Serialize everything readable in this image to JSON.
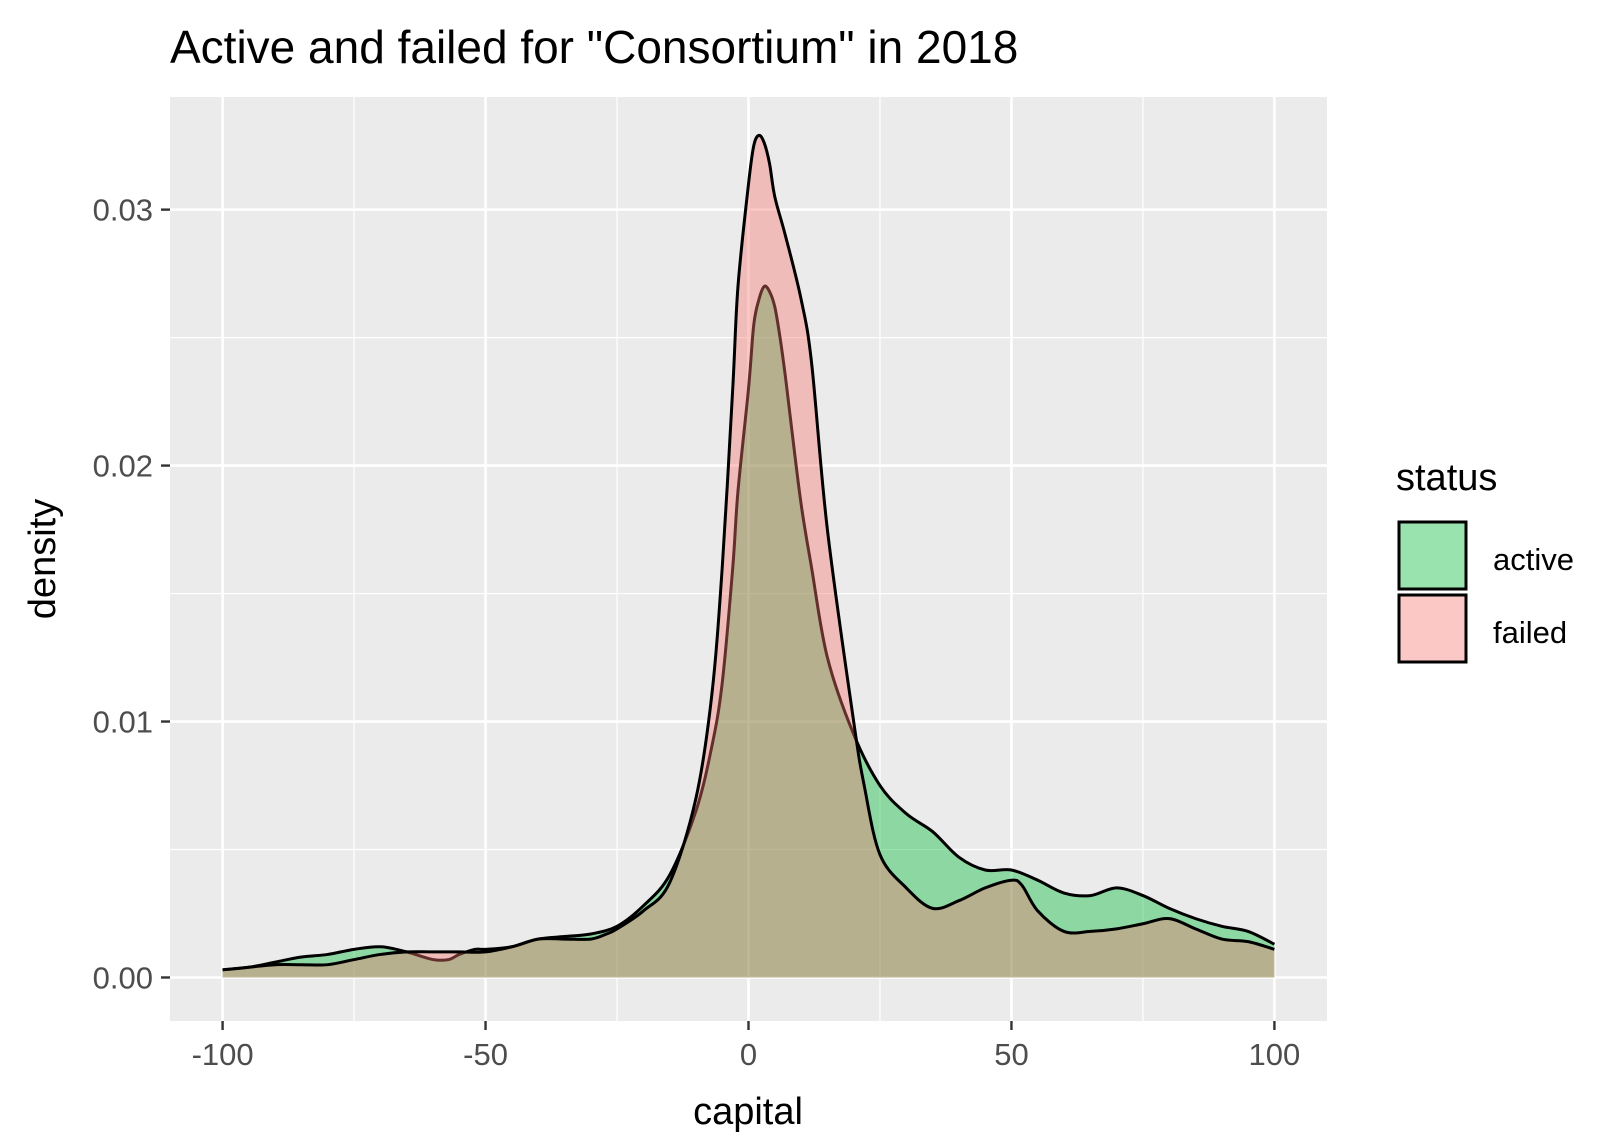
{
  "chart_data": {
    "type": "area",
    "title": "Active and failed for \"Consortium\" in 2018",
    "xlabel": "capital",
    "ylabel": "density",
    "xlim": [
      -110,
      110
    ],
    "ylim": [
      -0.0017,
      0.0344
    ],
    "x_ticks": [
      -100,
      -50,
      0,
      50,
      100
    ],
    "x_tick_labels": [
      "-100",
      "-50",
      "0",
      "50",
      "100"
    ],
    "y_ticks": [
      0.0,
      0.01,
      0.02,
      0.03
    ],
    "y_tick_labels": [
      "0.00",
      "0.01",
      "0.02",
      "0.03"
    ],
    "grid": true,
    "legend": {
      "title": "status",
      "position": "right",
      "entries": [
        {
          "label": "active",
          "color": "#00ba38"
        },
        {
          "label": "failed",
          "color": "#f8766d"
        }
      ]
    },
    "fill_opacity": 0.4,
    "series": [
      {
        "name": "active",
        "color": "#00ba38",
        "x": [
          -100,
          -95,
          -90,
          -85,
          -80,
          -75,
          -70,
          -65,
          -60,
          -57,
          -55,
          -52,
          -50,
          -45,
          -40,
          -35,
          -30,
          -25,
          -20,
          -15,
          -10,
          -7,
          -5,
          -3,
          -2,
          0,
          1,
          2,
          3,
          4,
          5,
          6,
          7,
          8,
          10,
          12,
          15,
          20,
          25,
          30,
          35,
          40,
          45,
          50,
          55,
          60,
          65,
          70,
          75,
          80,
          85,
          90,
          95,
          100
        ],
        "y": [
          0.0003,
          0.0004,
          0.0006,
          0.0008,
          0.0009,
          0.0011,
          0.0012,
          0.001,
          0.0007,
          0.0007,
          0.0009,
          0.0011,
          0.0011,
          0.0012,
          0.0015,
          0.0016,
          0.0017,
          0.002,
          0.0028,
          0.004,
          0.0065,
          0.009,
          0.0115,
          0.016,
          0.019,
          0.023,
          0.0255,
          0.0265,
          0.027,
          0.0268,
          0.0262,
          0.025,
          0.0235,
          0.0218,
          0.0185,
          0.016,
          0.0125,
          0.0095,
          0.0075,
          0.0064,
          0.0057,
          0.0047,
          0.0042,
          0.0042,
          0.0038,
          0.0033,
          0.0032,
          0.0035,
          0.0032,
          0.0027,
          0.0023,
          0.002,
          0.0018,
          0.0013
        ]
      },
      {
        "name": "failed",
        "color": "#f8766d",
        "x": [
          -100,
          -95,
          -90,
          -85,
          -80,
          -75,
          -70,
          -65,
          -60,
          -55,
          -50,
          -45,
          -40,
          -35,
          -30,
          -27,
          -25,
          -20,
          -15,
          -10,
          -7,
          -5,
          -3,
          -2,
          0,
          1,
          2,
          3,
          4,
          5,
          7,
          10,
          12,
          15,
          20,
          22,
          25,
          30,
          35,
          40,
          45,
          50,
          52,
          55,
          60,
          65,
          70,
          75,
          80,
          85,
          90,
          95,
          100
        ],
        "y": [
          0.0003,
          0.0004,
          0.0005,
          0.0005,
          0.0005,
          0.0007,
          0.0009,
          0.001,
          0.001,
          0.001,
          0.001,
          0.0012,
          0.0015,
          0.0015,
          0.0015,
          0.0017,
          0.0019,
          0.0026,
          0.0037,
          0.007,
          0.011,
          0.016,
          0.023,
          0.027,
          0.031,
          0.0325,
          0.0329,
          0.0326,
          0.0318,
          0.0305,
          0.029,
          0.0265,
          0.024,
          0.0175,
          0.01,
          0.0075,
          0.0048,
          0.0035,
          0.0027,
          0.003,
          0.0035,
          0.0038,
          0.0036,
          0.0026,
          0.0018,
          0.0018,
          0.0019,
          0.0021,
          0.0023,
          0.0019,
          0.0015,
          0.0014,
          0.0011
        ]
      }
    ]
  }
}
